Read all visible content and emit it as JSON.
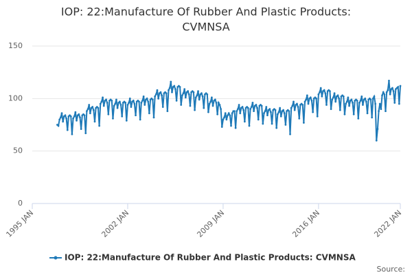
{
  "chart_data": {
    "type": "line",
    "title": "IOP: 22:Manufacture Of Rubber And Plastic Products:",
    "subtitle": "CVMNSA",
    "source": "Source:",
    "xlim": [
      "1995-01",
      "2022-01"
    ],
    "xticks": [
      {
        "value": "1995-01",
        "label": "1995 JAN"
      },
      {
        "value": "2002-01",
        "label": "2002 JAN"
      },
      {
        "value": "2009-01",
        "label": "2009 JAN"
      },
      {
        "value": "2016-01",
        "label": "2016 JAN"
      },
      {
        "value": "2022-01",
        "label": "2022 JAN"
      }
    ],
    "ylim": [
      0,
      150
    ],
    "yticks": [
      0,
      50,
      100,
      150
    ],
    "grid": true,
    "x": [
      "1996-11",
      "1996-12",
      "1997-01",
      "1997-02",
      "1997-03",
      "1997-04",
      "1997-05",
      "1997-06",
      "1997-07",
      "1997-08",
      "1997-09",
      "1997-10",
      "1997-11",
      "1997-12",
      "1998-01",
      "1998-02",
      "1998-03",
      "1998-04",
      "1998-05",
      "1998-06",
      "1998-07",
      "1998-08",
      "1998-09",
      "1998-10",
      "1998-11",
      "1998-12",
      "1999-01",
      "1999-02",
      "1999-03",
      "1999-04",
      "1999-05",
      "1999-06",
      "1999-07",
      "1999-08",
      "1999-09",
      "1999-10",
      "1999-11",
      "1999-12",
      "2000-01",
      "2000-02",
      "2000-03",
      "2000-04",
      "2000-05",
      "2000-06",
      "2000-07",
      "2000-08",
      "2000-09",
      "2000-10",
      "2000-11",
      "2000-12",
      "2001-01",
      "2001-02",
      "2001-03",
      "2001-04",
      "2001-05",
      "2001-06",
      "2001-07",
      "2001-08",
      "2001-09",
      "2001-10",
      "2001-11",
      "2001-12",
      "2002-01",
      "2002-02",
      "2002-03",
      "2002-04",
      "2002-05",
      "2002-06",
      "2002-07",
      "2002-08",
      "2002-09",
      "2002-10",
      "2002-11",
      "2002-12",
      "2003-01",
      "2003-02",
      "2003-03",
      "2003-04",
      "2003-05",
      "2003-06",
      "2003-07",
      "2003-08",
      "2003-09",
      "2003-10",
      "2003-11",
      "2003-12",
      "2004-01",
      "2004-02",
      "2004-03",
      "2004-04",
      "2004-05",
      "2004-06",
      "2004-07",
      "2004-08",
      "2004-09",
      "2004-10",
      "2004-11",
      "2004-12",
      "2005-01",
      "2005-02",
      "2005-03",
      "2005-04",
      "2005-05",
      "2005-06",
      "2005-07",
      "2005-08",
      "2005-09",
      "2005-10",
      "2005-11",
      "2005-12",
      "2006-01",
      "2006-02",
      "2006-03",
      "2006-04",
      "2006-05",
      "2006-06",
      "2006-07",
      "2006-08",
      "2006-09",
      "2006-10",
      "2006-11",
      "2006-12",
      "2007-01",
      "2007-02",
      "2007-03",
      "2007-04",
      "2007-05",
      "2007-06",
      "2007-07",
      "2007-08",
      "2007-09",
      "2007-10",
      "2007-11",
      "2007-12",
      "2008-01",
      "2008-02",
      "2008-03",
      "2008-04",
      "2008-05",
      "2008-06",
      "2008-07",
      "2008-08",
      "2008-09",
      "2008-10",
      "2008-11",
      "2008-12",
      "2009-01",
      "2009-02",
      "2009-03",
      "2009-04",
      "2009-05",
      "2009-06",
      "2009-07",
      "2009-08",
      "2009-09",
      "2009-10",
      "2009-11",
      "2009-12",
      "2010-01",
      "2010-02",
      "2010-03",
      "2010-04",
      "2010-05",
      "2010-06",
      "2010-07",
      "2010-08",
      "2010-09",
      "2010-10",
      "2010-11",
      "2010-12",
      "2011-01",
      "2011-02",
      "2011-03",
      "2011-04",
      "2011-05",
      "2011-06",
      "2011-07",
      "2011-08",
      "2011-09",
      "2011-10",
      "2011-11",
      "2011-12",
      "2012-01",
      "2012-02",
      "2012-03",
      "2012-04",
      "2012-05",
      "2012-06",
      "2012-07",
      "2012-08",
      "2012-09",
      "2012-10",
      "2012-11",
      "2012-12",
      "2013-01",
      "2013-02",
      "2013-03",
      "2013-04",
      "2013-05",
      "2013-06",
      "2013-07",
      "2013-08",
      "2013-09",
      "2013-10",
      "2013-11",
      "2013-12",
      "2014-01",
      "2014-02",
      "2014-03",
      "2014-04",
      "2014-05",
      "2014-06",
      "2014-07",
      "2014-08",
      "2014-09",
      "2014-10",
      "2014-11",
      "2014-12",
      "2015-01",
      "2015-02",
      "2015-03",
      "2015-04",
      "2015-05",
      "2015-06",
      "2015-07",
      "2015-08",
      "2015-09",
      "2015-10",
      "2015-11",
      "2015-12",
      "2016-01",
      "2016-02",
      "2016-03",
      "2016-04",
      "2016-05",
      "2016-06",
      "2016-07",
      "2016-08",
      "2016-09",
      "2016-10",
      "2016-11",
      "2016-12",
      "2017-01",
      "2017-02",
      "2017-03",
      "2017-04",
      "2017-05",
      "2017-06",
      "2017-07",
      "2017-08",
      "2017-09",
      "2017-10",
      "2017-11",
      "2017-12",
      "2018-01",
      "2018-02",
      "2018-03",
      "2018-04",
      "2018-05",
      "2018-06",
      "2018-07",
      "2018-08",
      "2018-09",
      "2018-10",
      "2018-11",
      "2018-12",
      "2019-01",
      "2019-02",
      "2019-03",
      "2019-04",
      "2019-05",
      "2019-06",
      "2019-07",
      "2019-08",
      "2019-09",
      "2019-10",
      "2019-11",
      "2019-12",
      "2020-01",
      "2020-02",
      "2020-03",
      "2020-04",
      "2020-05",
      "2020-06",
      "2020-07",
      "2020-08",
      "2020-09",
      "2020-10",
      "2020-11",
      "2020-12",
      "2021-01",
      "2021-02",
      "2021-03",
      "2021-04",
      "2021-05",
      "2021-06",
      "2021-07",
      "2021-08",
      "2021-09",
      "2021-10",
      "2021-11",
      "2021-12",
      "2022-01"
    ],
    "series": [
      {
        "name": "IOP: 22:Manufacture Of Rubber And Plastic Products: CVMNSA",
        "color": "#1f7ab8",
        "values": [
          75,
          74,
          80,
          82,
          86,
          78,
          83,
          84,
          81,
          70,
          83,
          84,
          83,
          66,
          81,
          83,
          87,
          79,
          84,
          85,
          82,
          71,
          84,
          85,
          84,
          67,
          88,
          90,
          94,
          86,
          91,
          92,
          89,
          78,
          91,
          92,
          91,
          74,
          95,
          97,
          101,
          93,
          98,
          99,
          96,
          85,
          98,
          99,
          98,
          81,
          93,
          95,
          99,
          91,
          96,
          97,
          94,
          83,
          96,
          97,
          96,
          79,
          94,
          96,
          100,
          92,
          97,
          98,
          95,
          84,
          97,
          98,
          97,
          80,
          96,
          98,
          102,
          94,
          99,
          100,
          97,
          86,
          99,
          100,
          99,
          82,
          102,
          104,
          108,
          100,
          105,
          106,
          103,
          92,
          105,
          106,
          105,
          88,
          108,
          110,
          116,
          106,
          111,
          112,
          109,
          98,
          111,
          112,
          111,
          94,
          103,
          105,
          109,
          101,
          106,
          107,
          104,
          93,
          106,
          107,
          106,
          89,
          101,
          103,
          107,
          99,
          104,
          105,
          102,
          91,
          104,
          105,
          104,
          87,
          95,
          97,
          101,
          93,
          98,
          99,
          96,
          85,
          96,
          94,
          90,
          73,
          80,
          82,
          86,
          80,
          84,
          86,
          84,
          74,
          86,
          88,
          88,
          72,
          88,
          90,
          94,
          86,
          91,
          92,
          89,
          78,
          91,
          92,
          91,
          74,
          90,
          92,
          96,
          88,
          93,
          94,
          91,
          80,
          93,
          94,
          93,
          76,
          86,
          88,
          92,
          84,
          89,
          90,
          87,
          76,
          89,
          90,
          89,
          72,
          85,
          87,
          91,
          83,
          88,
          89,
          86,
          75,
          88,
          89,
          88,
          66,
          91,
          93,
          97,
          89,
          94,
          95,
          92,
          81,
          94,
          95,
          94,
          77,
          97,
          99,
          103,
          95,
          100,
          101,
          98,
          87,
          100,
          101,
          100,
          83,
          104,
          106,
          110,
          102,
          107,
          108,
          105,
          94,
          107,
          108,
          107,
          90,
          99,
          101,
          105,
          97,
          102,
          103,
          100,
          89,
          102,
          103,
          102,
          85,
          95,
          97,
          101,
          93,
          98,
          99,
          96,
          85,
          98,
          99,
          98,
          81,
          96,
          98,
          102,
          94,
          99,
          100,
          97,
          86,
          99,
          100,
          99,
          82,
          100,
          102,
          95,
          60,
          71,
          88,
          95,
          90,
          103,
          106,
          104,
          88,
          106,
          108,
          117,
          104,
          109,
          110,
          107,
          96,
          109,
          110,
          111,
          95,
          112
        ]
      }
    ]
  }
}
